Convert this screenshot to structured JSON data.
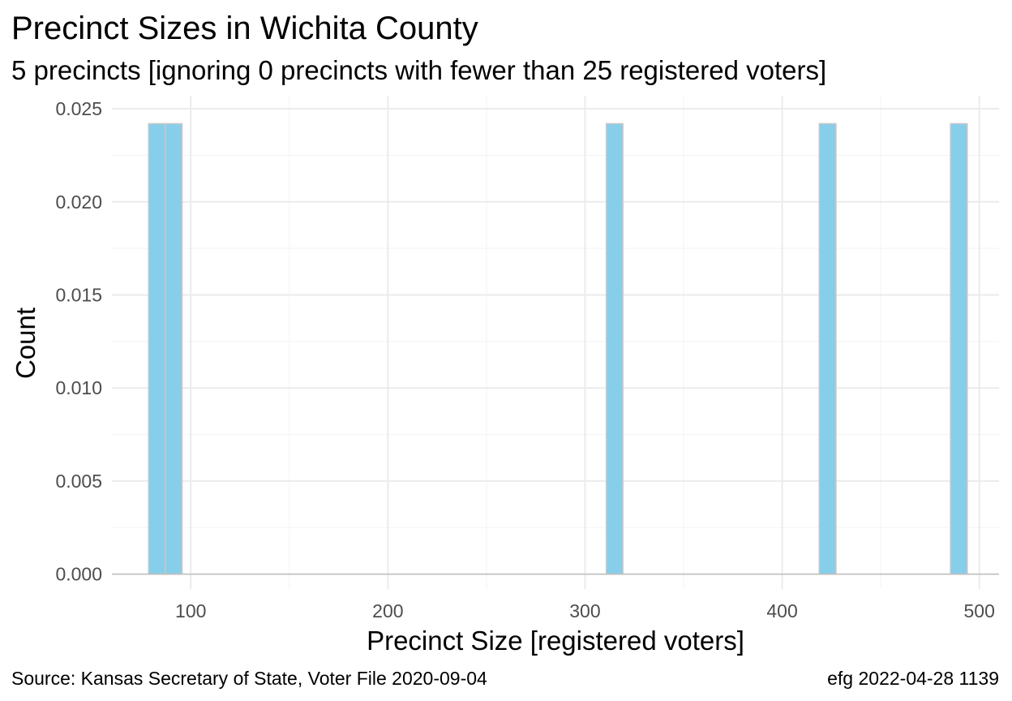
{
  "title": "Precinct Sizes in Wichita County",
  "subtitle": "5 precincts [ignoring 0 precincts with fewer than 25 registered voters]",
  "caption_left": "Source:  Kansas Secretary of State, Voter File  2020-09-04",
  "caption_right": "efg 2022-04-28 1139",
  "colors": {
    "bar_fill": "#87CEEB",
    "bar_outline": "#C8C8C8",
    "grid_major": "#EBEBEB",
    "grid_minor": "#F3F3F3",
    "baseline": "#BEBEBE",
    "tick_text": "#4D4D4D"
  },
  "chart_data": {
    "type": "bar",
    "title": "Precinct Sizes in Wichita County",
    "subtitle": "5 precincts [ignoring 0 precincts with fewer than 25 registered voters]",
    "xlabel": "Precinct Size [registered voters]",
    "ylabel": "Count",
    "xlim": [
      60,
      510
    ],
    "ylim": [
      -0.0008,
      0.0257
    ],
    "x_ticks": [
      100,
      200,
      300,
      400,
      500
    ],
    "y_ticks": [
      0.0,
      0.005,
      0.01,
      0.015,
      0.02,
      0.025
    ],
    "x_tick_labels": [
      "100",
      "200",
      "300",
      "400",
      "500"
    ],
    "y_tick_labels": [
      "0.000",
      "0.005",
      "0.010",
      "0.015",
      "0.020",
      "0.025"
    ],
    "grid": true,
    "bins": [
      {
        "x0": 78.6,
        "x1": 87.1,
        "value": 0.0242
      },
      {
        "x0": 87.1,
        "x1": 95.6,
        "value": 0.0242
      },
      {
        "x0": 310.8,
        "x1": 319.2,
        "value": 0.0242
      },
      {
        "x0": 418.8,
        "x1": 427.3,
        "value": 0.0242
      },
      {
        "x0": 485.4,
        "x1": 493.9,
        "value": 0.0242
      }
    ]
  }
}
